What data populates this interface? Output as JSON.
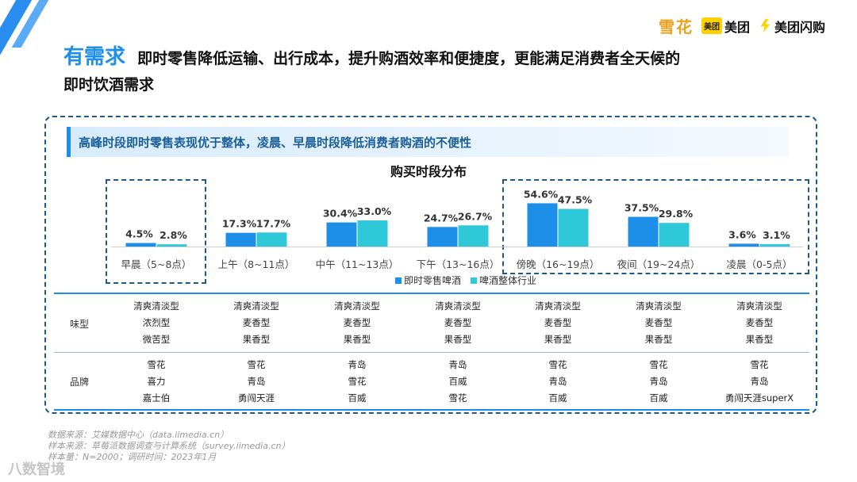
{
  "header": {
    "tag": "有需求",
    "headline_line1": "即时零售降低运输、出行成本，提升购酒效率和便捷度，更能满足消费者全天候的",
    "headline_line2": "即时饮酒需求"
  },
  "logos": {
    "snow": "雪花",
    "meituan_badge": "美团",
    "meituan": "美团",
    "shangou": "美团闪购"
  },
  "banner": "高峰时段即时零售表现优于整体，凌晨、早晨时段降低消费者购酒的不便性",
  "chart_data": {
    "type": "bar",
    "title": "购买时段分布",
    "categories": [
      "早晨（5~8点）",
      "上午（8~11点）",
      "中午（11~13点）",
      "下午（13~16点）",
      "傍晚（16~19点）",
      "夜间（19~24点）",
      "凌晨（0-5点）"
    ],
    "series": [
      {
        "name": "即时零售啤酒",
        "values": [
          4.5,
          17.3,
          30.4,
          24.7,
          54.6,
          37.5,
          3.6
        ],
        "labels": [
          "4.5%",
          "17.3%",
          "30.4%",
          "24.7%",
          "54.6%",
          "37.5%",
          "3.6%"
        ],
        "color": "#1e8fe8"
      },
      {
        "name": "啤酒整体行业",
        "values": [
          2.8,
          17.7,
          33.0,
          26.7,
          47.5,
          29.8,
          3.1
        ],
        "labels": [
          "2.8%",
          "17.7%",
          "33.0%",
          "26.7%",
          "47.5%",
          "29.8%",
          "3.1%"
        ],
        "color": "#2ec8d8"
      }
    ],
    "ylim": [
      0,
      60
    ],
    "legend_position": "bottom-center"
  },
  "table": {
    "row1_label": "味型",
    "row2_label": "品牌",
    "taste": [
      [
        "清爽清淡型",
        "浓烈型",
        "微苦型"
      ],
      [
        "清爽清淡型",
        "麦香型",
        "果香型"
      ],
      [
        "清爽清淡型",
        "麦香型",
        "果香型"
      ],
      [
        "清爽清淡型",
        "麦香型",
        "果香型"
      ],
      [
        "清爽清淡型",
        "麦香型",
        "果香型"
      ],
      [
        "清爽清淡型",
        "麦香型",
        "果香型"
      ],
      [
        "清爽清淡型",
        "麦香型",
        "果香型"
      ]
    ],
    "brand": [
      [
        "雪花",
        "喜力",
        "嘉士伯"
      ],
      [
        "雪花",
        "青岛",
        "勇闯天涯"
      ],
      [
        "青岛",
        "雪花",
        "百威"
      ],
      [
        "青岛",
        "百威",
        "雪花"
      ],
      [
        "雪花",
        "青岛",
        "百威"
      ],
      [
        "雪花",
        "青岛",
        "百威"
      ],
      [
        "雪花",
        "青岛",
        "勇闯天涯superX"
      ]
    ]
  },
  "footer": {
    "line1": "数据来源：艾媒数据中心（data.iimedia.cn）",
    "line2": "样本来源：草莓派数据调查与计算系统（survey.iimedia.cn）",
    "line3": "样本量：N=2000；调研时间：2023年1月"
  },
  "watermark": "八数智境"
}
